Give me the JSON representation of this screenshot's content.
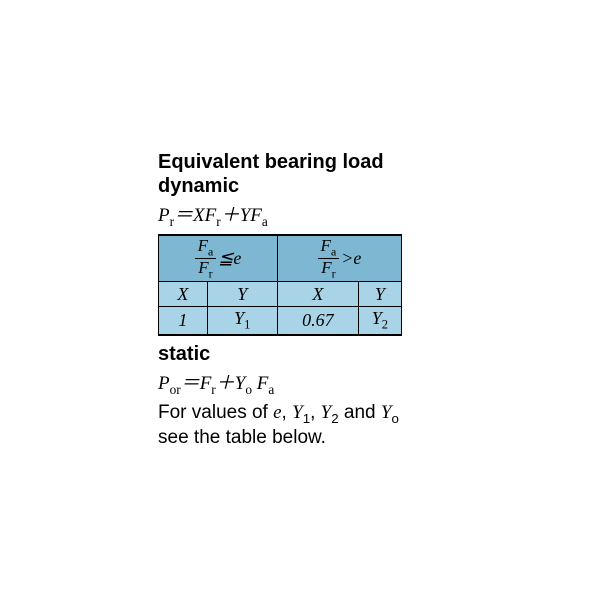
{
  "title_line1": "Equivalent bearing load",
  "title_line2": "dynamic",
  "formula_dynamic_html": "P<span class='sub'>r</span>＝XF<span class='sub'>r</span>＋YF<span class='sub'>a</span>",
  "table": {
    "bg_header": "#7db7d1",
    "bg_row": "#a9d3e6",
    "header_left_num": "F<span class='sub upright'>a</span>",
    "header_left_den": "F<span class='sub upright'>r</span>",
    "header_left_rel": "≦e",
    "header_right_num": "F<span class='sub upright'>a</span>",
    "header_right_den": "F<span class='sub upright'>r</span>",
    "header_right_rel": ">e",
    "col_labels": [
      "X",
      "Y",
      "X",
      "Y"
    ],
    "values": [
      "1",
      "Y<span class='sub'>1</span>",
      "0.67",
      "Y<span class='sub'>2</span>"
    ]
  },
  "static_heading": "static",
  "formula_static_html": "P<span class='sub'>or</span>＝F<span class='sub'>r</span>＋Y<span class='sub'>o</span> F<span class='sub'>a</span>",
  "footnote_html": "For values of <span class='ital'>e</span>, <span class='ital'>Y</span><span class='sub'>1</span>, <span class='ital'>Y</span><span class='sub'>2</span> and <span class='ital'>Y</span><span class='sub'>o</span><br>see the table below."
}
